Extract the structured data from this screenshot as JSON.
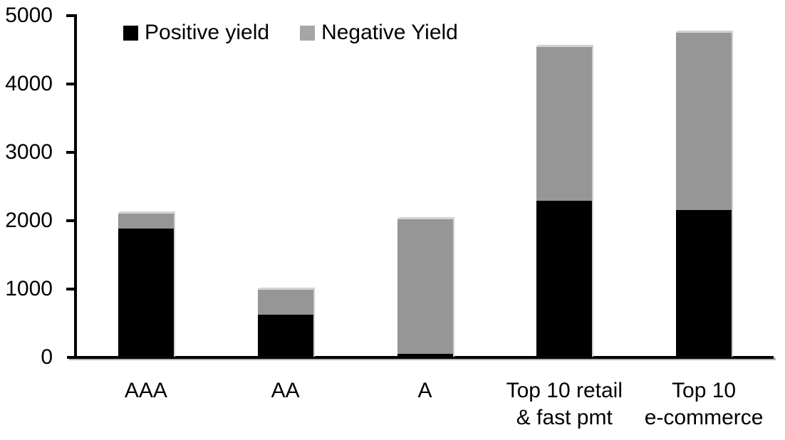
{
  "chart_data": {
    "type": "bar",
    "stacked": true,
    "title": "",
    "xlabel": "",
    "ylabel": "",
    "grid": false,
    "legend_position": "top",
    "axis_color": "#000000",
    "background_color": "#ffffff",
    "ylim": [
      0,
      5000
    ],
    "yticks": [
      0,
      1000,
      2000,
      3000,
      4000,
      5000
    ],
    "categories": [
      "AAA",
      "AA",
      "A",
      "Top 10 retail\n& fast pmt",
      "Top 10\ne-commerce"
    ],
    "series": [
      {
        "name": "Positive yield",
        "color": "#000000",
        "legend_color": "#000000",
        "values": [
          1890,
          620,
          50,
          2290,
          2160
        ]
      },
      {
        "name": "Negative Yield",
        "color": "#969696",
        "legend_color": "#a6a6a6",
        "values": [
          235,
          390,
          1990,
          2270,
          2610
        ]
      }
    ]
  }
}
